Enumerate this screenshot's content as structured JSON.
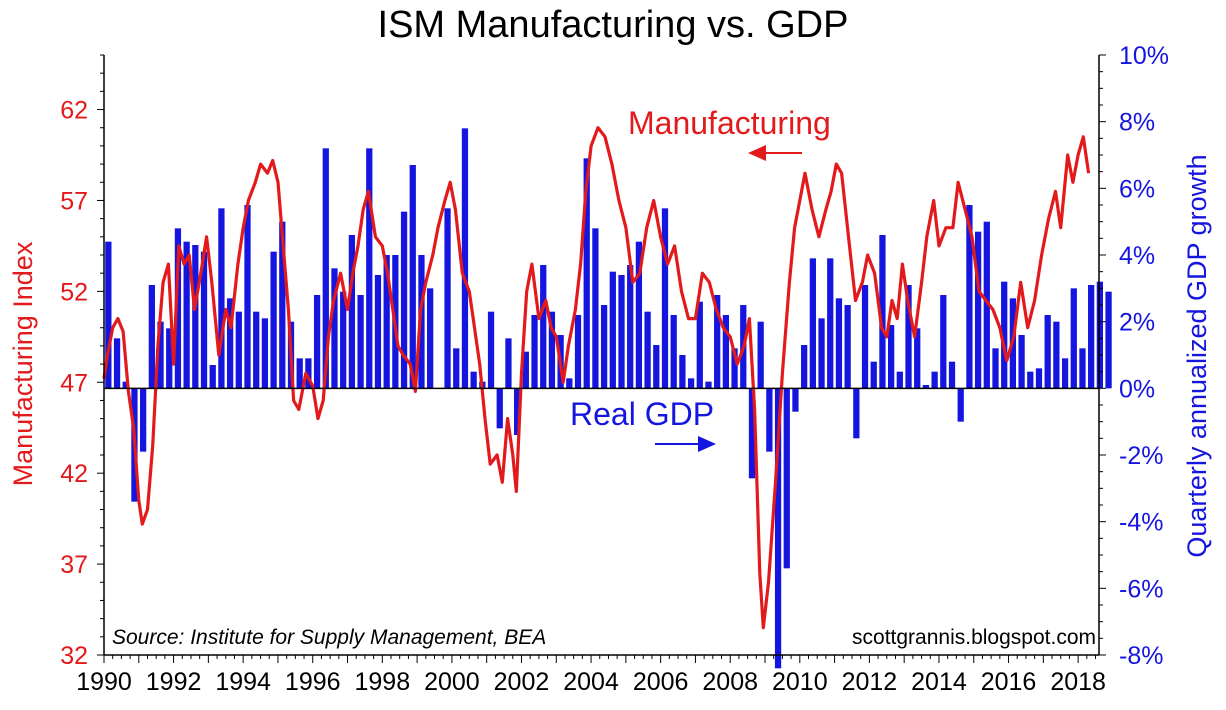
{
  "chart_data": {
    "type": "bar+line",
    "title": "ISM Manufacturing vs. GDP",
    "x_range": [
      1990,
      2018.6
    ],
    "x_ticks": [
      "1990",
      "1992",
      "1994",
      "1996",
      "1998",
      "2000",
      "2002",
      "2004",
      "2006",
      "2008",
      "2010",
      "2012",
      "2014",
      "2016",
      "2018"
    ],
    "left_axis": {
      "label": "Manufacturing Index",
      "ylim": [
        32,
        65
      ],
      "ticks": [
        32,
        37,
        42,
        47,
        52,
        57,
        62
      ],
      "color": "#e31a1c"
    },
    "right_axis": {
      "label": "Quarterly annualized GDP growth",
      "ylim": [
        -8,
        10
      ],
      "ticks": [
        "-8%",
        "-6%",
        "-4%",
        "-2%",
        "0%",
        "2%",
        "4%",
        "6%",
        "8%",
        "10%"
      ],
      "color": "#1515e0"
    },
    "annotations": {
      "manufacturing": "Manufacturing",
      "gdp": "Real GDP"
    },
    "source": "Source:  Institute for Supply Management, BEA",
    "credit": "scottgrannis.blogspot.com",
    "series": [
      {
        "name": "Real GDP",
        "kind": "bar",
        "axis": "right",
        "color": "#1515e0",
        "start": 1990.0,
        "step": 0.25,
        "values": [
          4.4,
          1.5,
          0.2,
          -3.4,
          -1.9,
          3.1,
          2.0,
          1.8,
          4.8,
          4.4,
          4.3,
          4.1,
          0.7,
          5.4,
          2.7,
          2.3,
          5.5,
          2.3,
          2.1,
          4.1,
          5.0,
          2.0,
          0.9,
          0.9,
          2.8,
          7.2,
          3.6,
          2.9,
          4.6,
          2.8,
          7.2,
          3.4,
          4.0,
          4.0,
          5.3,
          6.7,
          4.0,
          3.0,
          0.0,
          5.4,
          1.2,
          7.8,
          0.5,
          0.2,
          2.3,
          -1.2,
          1.5,
          -1.4,
          1.1,
          2.2,
          3.7,
          2.3,
          1.6,
          0.3,
          2.2,
          6.9,
          4.8,
          2.5,
          3.5,
          3.4,
          3.7,
          4.4,
          2.3,
          1.3,
          5.4,
          2.2,
          1.0,
          0.3,
          2.6,
          0.2,
          2.8,
          2.2,
          1.2,
          2.5,
          -2.7,
          2.0,
          -1.9,
          -8.4,
          -5.4,
          -0.7,
          1.3,
          3.9,
          2.1,
          3.9,
          2.7,
          2.5,
          -1.5,
          3.1,
          0.8,
          4.6,
          1.9,
          0.5,
          3.1,
          1.8,
          0.1,
          0.5,
          2.8,
          0.8,
          -1.0,
          5.5,
          4.7,
          5.0,
          1.2,
          3.2,
          2.7,
          1.6,
          0.5,
          0.6,
          2.2,
          2.0,
          0.9,
          3.0,
          1.2,
          3.1,
          3.2,
          2.9
        ]
      },
      {
        "name": "Manufacturing",
        "kind": "line",
        "axis": "left",
        "color": "#e31a1c",
        "points": [
          [
            1990.0,
            47.2
          ],
          [
            1990.1,
            48.5
          ],
          [
            1990.25,
            50.0
          ],
          [
            1990.4,
            50.5
          ],
          [
            1990.55,
            49.8
          ],
          [
            1990.7,
            46.5
          ],
          [
            1990.85,
            44.5
          ],
          [
            1991.0,
            40.5
          ],
          [
            1991.1,
            39.2
          ],
          [
            1991.25,
            40.0
          ],
          [
            1991.4,
            43.5
          ],
          [
            1991.55,
            49.0
          ],
          [
            1991.7,
            52.5
          ],
          [
            1991.85,
            53.5
          ],
          [
            1992.0,
            48.0
          ],
          [
            1992.15,
            54.5
          ],
          [
            1992.3,
            53.5
          ],
          [
            1992.45,
            54.0
          ],
          [
            1992.6,
            51.0
          ],
          [
            1992.8,
            53.2
          ],
          [
            1992.95,
            55.0
          ],
          [
            1993.1,
            52.5
          ],
          [
            1993.3,
            48.5
          ],
          [
            1993.5,
            51.0
          ],
          [
            1993.65,
            50.0
          ],
          [
            1993.85,
            53.5
          ],
          [
            1994.0,
            55.5
          ],
          [
            1994.15,
            57.0
          ],
          [
            1994.35,
            58.0
          ],
          [
            1994.5,
            59.0
          ],
          [
            1994.7,
            58.5
          ],
          [
            1994.85,
            59.2
          ],
          [
            1995.0,
            58.0
          ],
          [
            1995.15,
            54.5
          ],
          [
            1995.3,
            51.0
          ],
          [
            1995.45,
            46.0
          ],
          [
            1995.6,
            45.5
          ],
          [
            1995.8,
            47.5
          ],
          [
            1996.0,
            46.8
          ],
          [
            1996.15,
            45.0
          ],
          [
            1996.3,
            46.0
          ],
          [
            1996.45,
            49.5
          ],
          [
            1996.6,
            51.5
          ],
          [
            1996.8,
            53.0
          ],
          [
            1997.0,
            51.0
          ],
          [
            1997.15,
            53.0
          ],
          [
            1997.3,
            54.5
          ],
          [
            1997.45,
            56.5
          ],
          [
            1997.6,
            57.5
          ],
          [
            1997.8,
            55.0
          ],
          [
            1998.0,
            54.5
          ],
          [
            1998.15,
            53.0
          ],
          [
            1998.3,
            51.0
          ],
          [
            1998.45,
            49.0
          ],
          [
            1998.6,
            48.5
          ],
          [
            1998.8,
            48.0
          ],
          [
            1998.95,
            46.5
          ],
          [
            1999.1,
            51.0
          ],
          [
            1999.25,
            52.5
          ],
          [
            1999.45,
            54.0
          ],
          [
            1999.6,
            55.5
          ],
          [
            1999.8,
            57.0
          ],
          [
            1999.95,
            58.0
          ],
          [
            2000.1,
            56.5
          ],
          [
            2000.3,
            53.0
          ],
          [
            2000.5,
            52.0
          ],
          [
            2000.65,
            50.0
          ],
          [
            2000.8,
            48.0
          ],
          [
            2000.95,
            45.0
          ],
          [
            2001.1,
            42.5
          ],
          [
            2001.3,
            43.0
          ],
          [
            2001.45,
            41.5
          ],
          [
            2001.6,
            45.0
          ],
          [
            2001.75,
            43.0
          ],
          [
            2001.85,
            41.0
          ],
          [
            2002.0,
            47.5
          ],
          [
            2002.15,
            52.0
          ],
          [
            2002.3,
            53.5
          ],
          [
            2002.5,
            50.5
          ],
          [
            2002.7,
            51.5
          ],
          [
            2002.85,
            50.0
          ],
          [
            2003.0,
            49.5
          ],
          [
            2003.2,
            47.0
          ],
          [
            2003.35,
            49.0
          ],
          [
            2003.55,
            51.0
          ],
          [
            2003.7,
            53.5
          ],
          [
            2003.85,
            57.5
          ],
          [
            2004.0,
            60.0
          ],
          [
            2004.2,
            61.0
          ],
          [
            2004.4,
            60.5
          ],
          [
            2004.6,
            59.0
          ],
          [
            2004.8,
            57.0
          ],
          [
            2005.0,
            55.5
          ],
          [
            2005.2,
            52.5
          ],
          [
            2005.4,
            53.0
          ],
          [
            2005.6,
            55.5
          ],
          [
            2005.8,
            57.0
          ],
          [
            2006.0,
            55.0
          ],
          [
            2006.2,
            53.5
          ],
          [
            2006.4,
            54.5
          ],
          [
            2006.6,
            52.0
          ],
          [
            2006.8,
            50.5
          ],
          [
            2007.0,
            50.5
          ],
          [
            2007.2,
            53.0
          ],
          [
            2007.4,
            52.5
          ],
          [
            2007.6,
            51.0
          ],
          [
            2007.8,
            50.0
          ],
          [
            2008.0,
            49.5
          ],
          [
            2008.2,
            48.0
          ],
          [
            2008.4,
            49.0
          ],
          [
            2008.55,
            50.5
          ],
          [
            2008.7,
            45.5
          ],
          [
            2008.85,
            36.5
          ],
          [
            2008.95,
            33.5
          ],
          [
            2009.1,
            36.0
          ],
          [
            2009.3,
            41.5
          ],
          [
            2009.5,
            47.5
          ],
          [
            2009.7,
            52.5
          ],
          [
            2009.85,
            55.5
          ],
          [
            2010.0,
            57.0
          ],
          [
            2010.15,
            58.5
          ],
          [
            2010.35,
            56.5
          ],
          [
            2010.55,
            55.0
          ],
          [
            2010.75,
            56.5
          ],
          [
            2010.9,
            57.5
          ],
          [
            2011.05,
            59.0
          ],
          [
            2011.2,
            58.5
          ],
          [
            2011.4,
            55.0
          ],
          [
            2011.6,
            51.5
          ],
          [
            2011.8,
            52.5
          ],
          [
            2011.95,
            54.0
          ],
          [
            2012.15,
            53.0
          ],
          [
            2012.35,
            50.0
          ],
          [
            2012.5,
            49.5
          ],
          [
            2012.65,
            51.5
          ],
          [
            2012.8,
            50.5
          ],
          [
            2012.95,
            53.5
          ],
          [
            2013.1,
            51.5
          ],
          [
            2013.3,
            49.5
          ],
          [
            2013.5,
            52.5
          ],
          [
            2013.65,
            55.0
          ],
          [
            2013.85,
            57.0
          ],
          [
            2014.0,
            54.5
          ],
          [
            2014.2,
            55.5
          ],
          [
            2014.4,
            55.5
          ],
          [
            2014.55,
            58.0
          ],
          [
            2014.75,
            56.5
          ],
          [
            2014.95,
            55.0
          ],
          [
            2015.15,
            52.0
          ],
          [
            2015.35,
            51.5
          ],
          [
            2015.55,
            51.0
          ],
          [
            2015.75,
            50.0
          ],
          [
            2015.95,
            48.2
          ],
          [
            2016.15,
            49.5
          ],
          [
            2016.35,
            52.5
          ],
          [
            2016.55,
            50.0
          ],
          [
            2016.75,
            51.5
          ],
          [
            2016.95,
            54.0
          ],
          [
            2017.15,
            56.0
          ],
          [
            2017.35,
            57.5
          ],
          [
            2017.5,
            55.5
          ],
          [
            2017.7,
            59.5
          ],
          [
            2017.85,
            58.0
          ],
          [
            2018.0,
            59.5
          ],
          [
            2018.15,
            60.5
          ],
          [
            2018.3,
            58.5
          ]
        ]
      }
    ],
    "grid": false,
    "zero_line": true
  }
}
